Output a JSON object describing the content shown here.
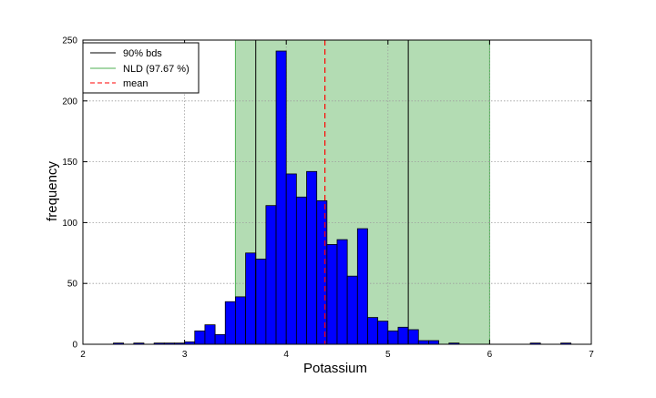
{
  "chart_data": {
    "type": "bar",
    "title": "",
    "xlabel": "Potassium",
    "ylabel": "frequency",
    "xlim": [
      2,
      7
    ],
    "ylim": [
      0,
      250
    ],
    "xticks": [
      2,
      3,
      4,
      5,
      6,
      7
    ],
    "xtick_labels": [
      "2",
      "3",
      "4",
      "5",
      "6",
      "7"
    ],
    "yticks": [
      0,
      50,
      100,
      150,
      200,
      250
    ],
    "ytick_labels": [
      "0",
      "50",
      "100",
      "150",
      "200",
      "250"
    ],
    "grid": true,
    "legend_position": "top-left",
    "legend": [
      {
        "label": "90% bds",
        "color": "#000000",
        "style": "solid"
      },
      {
        "label": "NLD (97.67 %)",
        "color": "#4caf50",
        "style": "solid"
      },
      {
        "label": "mean",
        "color": "#ff0000",
        "style": "dashed"
      }
    ],
    "colors": {
      "bars": "#0000ff",
      "bar_edge": "#000000",
      "nld_band": "#b3dcb3",
      "bounds": "#000000",
      "mean": "#ff0000",
      "grid": "#9e9e9e"
    },
    "nld_band": [
      3.5,
      6.0
    ],
    "bounds_90": [
      3.7,
      5.2
    ],
    "mean": 4.38,
    "histogram": {
      "bin_width": 0.1,
      "bins": [
        {
          "x": 2.3,
          "count": 1
        },
        {
          "x": 2.5,
          "count": 1
        },
        {
          "x": 2.7,
          "count": 1
        },
        {
          "x": 2.8,
          "count": 1
        },
        {
          "x": 2.9,
          "count": 1
        },
        {
          "x": 3.0,
          "count": 2
        },
        {
          "x": 3.1,
          "count": 11
        },
        {
          "x": 3.2,
          "count": 16
        },
        {
          "x": 3.3,
          "count": 8
        },
        {
          "x": 3.4,
          "count": 35
        },
        {
          "x": 3.5,
          "count": 39
        },
        {
          "x": 3.6,
          "count": 75
        },
        {
          "x": 3.7,
          "count": 70
        },
        {
          "x": 3.8,
          "count": 114
        },
        {
          "x": 3.9,
          "count": 241
        },
        {
          "x": 4.0,
          "count": 140
        },
        {
          "x": 4.1,
          "count": 121
        },
        {
          "x": 4.2,
          "count": 142
        },
        {
          "x": 4.3,
          "count": 118
        },
        {
          "x": 4.4,
          "count": 82
        },
        {
          "x": 4.5,
          "count": 86
        },
        {
          "x": 4.6,
          "count": 56
        },
        {
          "x": 4.7,
          "count": 95
        },
        {
          "x": 4.8,
          "count": 22
        },
        {
          "x": 4.9,
          "count": 19
        },
        {
          "x": 5.0,
          "count": 11
        },
        {
          "x": 5.1,
          "count": 14
        },
        {
          "x": 5.2,
          "count": 12
        },
        {
          "x": 5.3,
          "count": 3
        },
        {
          "x": 5.4,
          "count": 3
        },
        {
          "x": 5.6,
          "count": 1
        },
        {
          "x": 6.4,
          "count": 1
        },
        {
          "x": 6.7,
          "count": 1
        }
      ]
    }
  }
}
